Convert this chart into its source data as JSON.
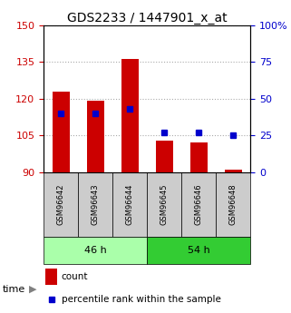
{
  "title": "GDS2233 / 1447901_x_at",
  "samples": [
    "GSM96642",
    "GSM96643",
    "GSM96644",
    "GSM96645",
    "GSM96646",
    "GSM96648"
  ],
  "count_values": [
    123,
    119,
    136,
    103,
    102,
    91
  ],
  "percentile_values": [
    40,
    40,
    43,
    27,
    27,
    25
  ],
  "bar_bottom": 90,
  "left_ylim": [
    90,
    150
  ],
  "right_ylim": [
    0,
    100
  ],
  "left_yticks": [
    90,
    105,
    120,
    135,
    150
  ],
  "right_yticks": [
    0,
    25,
    50,
    75,
    100
  ],
  "right_yticklabels": [
    "0",
    "25",
    "50",
    "75",
    "100%"
  ],
  "bar_color": "#cc0000",
  "dot_color": "#0000cc",
  "group1_label": "46 h",
  "group2_label": "54 h",
  "group1_count": 3,
  "group2_count": 3,
  "time_label": "time",
  "legend_count": "count",
  "legend_percentile": "percentile rank within the sample",
  "background_color": "#ffffff",
  "grid_color": "#aaaaaa",
  "bar_width": 0.5,
  "title_fontsize": 10,
  "tick_fontsize": 8,
  "group_bg_light": "#aaffaa",
  "group_bg_dark": "#33cc33",
  "sample_bg": "#cccccc"
}
